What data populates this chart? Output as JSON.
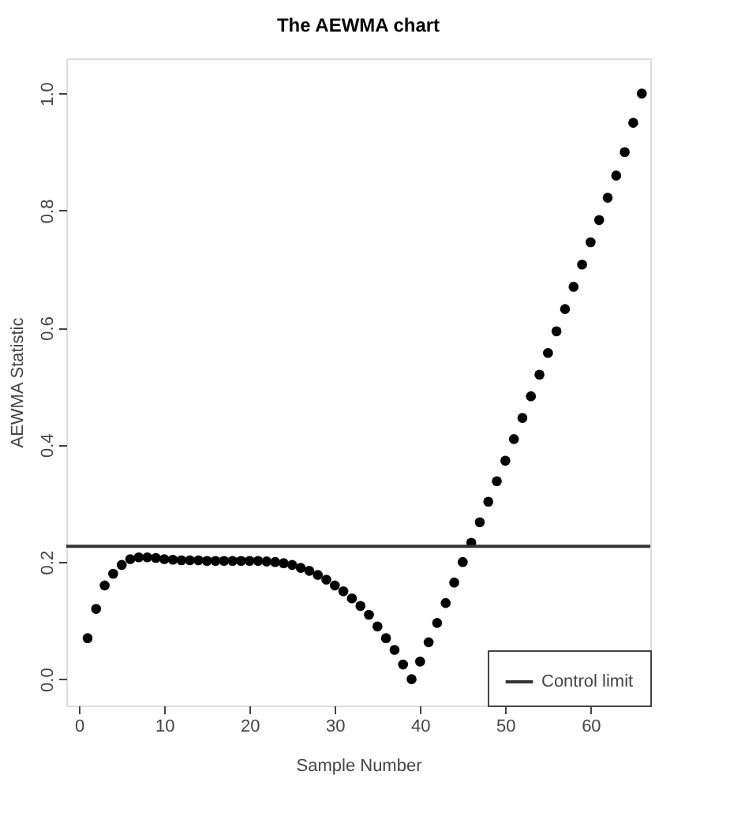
{
  "chart_data": {
    "type": "scatter",
    "title": "The AEWMA chart",
    "xlabel": "Sample Number",
    "ylabel": "AEWMA Statistic",
    "x": [
      1,
      2,
      3,
      4,
      5,
      6,
      7,
      8,
      9,
      10,
      11,
      12,
      13,
      14,
      15,
      16,
      17,
      18,
      19,
      20,
      21,
      22,
      23,
      24,
      25,
      26,
      27,
      28,
      29,
      30,
      31,
      32,
      33,
      34,
      35,
      36,
      37,
      38,
      39,
      40,
      41,
      42,
      43,
      44,
      45,
      46,
      47,
      48,
      49,
      50,
      51,
      52,
      53,
      54,
      55,
      56,
      57,
      58,
      59,
      60,
      61,
      62,
      63,
      64,
      65,
      66
    ],
    "series": [
      {
        "color": "#000000",
        "values": [
          0.07,
          0.12,
          0.16,
          0.18,
          0.195,
          0.205,
          0.208,
          0.208,
          0.207,
          0.205,
          0.204,
          0.203,
          0.203,
          0.203,
          0.202,
          0.202,
          0.202,
          0.202,
          0.202,
          0.202,
          0.202,
          0.201,
          0.2,
          0.198,
          0.195,
          0.19,
          0.185,
          0.178,
          0.17,
          0.16,
          0.15,
          0.138,
          0.125,
          0.11,
          0.09,
          0.07,
          0.05,
          0.025,
          0.0,
          0.03,
          0.063,
          0.096,
          0.13,
          0.165,
          0.2,
          0.233,
          0.268,
          0.303,
          0.338,
          0.373,
          0.41,
          0.446,
          0.483,
          0.52,
          0.557,
          0.594,
          0.632,
          0.67,
          0.708,
          0.746,
          0.784,
          0.822,
          0.86,
          0.9,
          0.95,
          1.0
        ]
      }
    ],
    "ref_lines": [
      {
        "axis": "y",
        "value": 0.227,
        "label": "Control limit",
        "color": "#333333",
        "line_style": "solid"
      }
    ],
    "xlim": [
      -1.5,
      67
    ],
    "ylim": [
      -0.045,
      1.06
    ],
    "xticks": [
      0,
      10,
      20,
      30,
      40,
      50,
      60
    ],
    "yticks": [
      {
        "value": 0,
        "label": "0.0"
      },
      {
        "value": 0.2,
        "label": "0.2"
      },
      {
        "value": 0.4,
        "label": "0.4"
      },
      {
        "value": 0.6,
        "label": "0.6"
      },
      {
        "value": 0.8,
        "label": "0.8"
      },
      {
        "value": 1,
        "label": "1.0"
      }
    ],
    "marker": "circle",
    "grid": false,
    "legend": "bottom right"
  }
}
